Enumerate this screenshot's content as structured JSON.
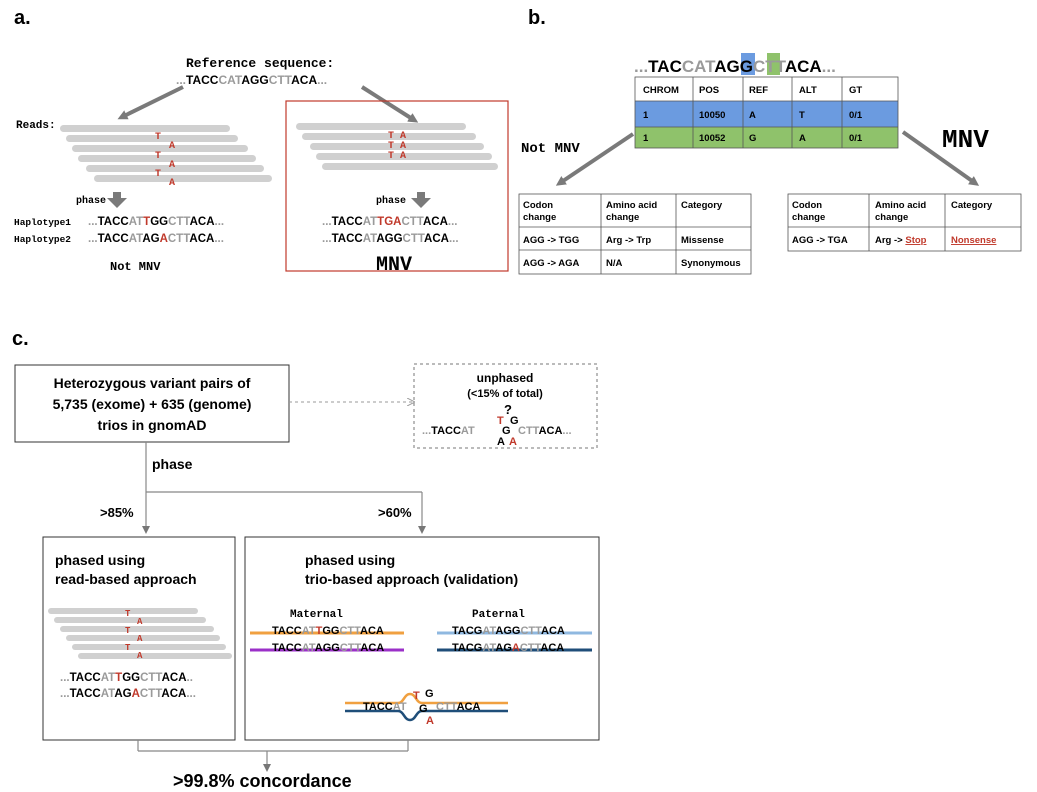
{
  "colors": {
    "red": "#c0392b",
    "gray_text": "#9a9a9a",
    "read_gray": "#d0d0d0",
    "table_blue": "#6b9be0",
    "table_green": "#8fc26b",
    "maternal_top": "#f0a040",
    "maternal_bottom": "#9b30c8",
    "paternal_top": "#8fb8e0",
    "paternal_bottom": "#1f4e79"
  },
  "panel_a": {
    "label": "a.",
    "ref_title": "Reference sequence:",
    "ref_seq": [
      {
        "t": "...",
        "c": "gray_text"
      },
      {
        "t": "TACC",
        "c": "black"
      },
      {
        "t": "CAT",
        "c": "gray_text"
      },
      {
        "t": "AGG",
        "c": "black"
      },
      {
        "t": "CTT",
        "c": "gray_text"
      },
      {
        "t": "ACA",
        "c": "black"
      },
      {
        "t": "...",
        "c": "gray_text"
      }
    ],
    "reads_label": "Reads:",
    "left_read_letters": [
      "T",
      "A",
      "T",
      "A",
      "T",
      "A"
    ],
    "right_read_letters": [
      "T A",
      "T A",
      "T A"
    ],
    "phase_label": "phase",
    "haplotype1_label": "Haplotype1",
    "haplotype2_label": "Haplotype2",
    "hap1_seq": [
      {
        "t": "...",
        "c": "gray_text"
      },
      {
        "t": "TACC",
        "c": "black"
      },
      {
        "t": "AT",
        "c": "gray_text"
      },
      {
        "t": "T",
        "c": "red"
      },
      {
        "t": "GG",
        "c": "black"
      },
      {
        "t": "CTT",
        "c": "gray_text"
      },
      {
        "t": "ACA",
        "c": "black"
      },
      {
        "t": "...",
        "c": "gray_text"
      }
    ],
    "hap2_seq": [
      {
        "t": "...",
        "c": "gray_text"
      },
      {
        "t": "TACC",
        "c": "black"
      },
      {
        "t": "AT",
        "c": "gray_text"
      },
      {
        "t": "AG",
        "c": "black"
      },
      {
        "t": "A",
        "c": "red"
      },
      {
        "t": "CTT",
        "c": "gray_text"
      },
      {
        "t": "ACA",
        "c": "black"
      },
      {
        "t": "...",
        "c": "gray_text"
      }
    ],
    "mnv_seq1": [
      {
        "t": "...",
        "c": "gray_text"
      },
      {
        "t": "TACC",
        "c": "black"
      },
      {
        "t": "AT",
        "c": "gray_text"
      },
      {
        "t": "TGA",
        "c": "red"
      },
      {
        "t": "CTT",
        "c": "gray_text"
      },
      {
        "t": "ACA",
        "c": "black"
      },
      {
        "t": "...",
        "c": "gray_text"
      }
    ],
    "mnv_seq2": [
      {
        "t": "...",
        "c": "gray_text"
      },
      {
        "t": "TACC",
        "c": "black"
      },
      {
        "t": "AT",
        "c": "gray_text"
      },
      {
        "t": "AGG",
        "c": "black"
      },
      {
        "t": "CTT",
        "c": "gray_text"
      },
      {
        "t": "ACA",
        "c": "black"
      },
      {
        "t": "...",
        "c": "gray_text"
      }
    ],
    "not_mnv": "Not MNV",
    "mnv": "MNV"
  },
  "panel_b": {
    "label": "b.",
    "seq": [
      {
        "t": "...",
        "c": "gray_text"
      },
      {
        "t": "TAC",
        "c": "black"
      },
      {
        "t": "CAT",
        "c": "gray_text"
      },
      {
        "t": "AGG",
        "c": "black"
      },
      {
        "t": "CTT",
        "c": "gray_text"
      },
      {
        "t": "ACA",
        "c": "black"
      },
      {
        "t": "...",
        "c": "gray_text"
      }
    ],
    "vcf_headers": [
      "CHROM",
      "POS",
      "REF",
      "ALT",
      "GT"
    ],
    "vcf_rows": [
      [
        "1",
        "10050",
        "A",
        "T",
        "0/1"
      ],
      [
        "1",
        "10052",
        "G",
        "A",
        "0/1"
      ]
    ],
    "not_mnv": "Not MNV",
    "mnv": "MNV",
    "left_table": {
      "headers": [
        [
          "Codon",
          "change"
        ],
        [
          "Amino acid",
          "change"
        ],
        [
          "Category"
        ]
      ],
      "rows": [
        [
          "AGG -> TGG",
          "Arg -> Trp",
          "Missense"
        ],
        [
          "AGG -> AGA",
          "N/A",
          "Synonymous"
        ]
      ]
    },
    "right_table": {
      "headers": [
        [
          "Codon",
          "change"
        ],
        [
          "Amino acid",
          "change"
        ],
        [
          "Category"
        ]
      ],
      "row": [
        "AGG -> TGA",
        "Arg -> ",
        "Stop",
        "Nonsense"
      ]
    }
  },
  "panel_c": {
    "label": "c.",
    "main_box": [
      "Heterozygous variant pairs of",
      "5,735 (exome)   +   635 (genome)",
      "trios in gnomAD"
    ],
    "unphased_title": "unphased",
    "unphased_sub": "(<15% of total)",
    "unphased_seq_left": "...TACCAT",
    "unphased_seq_right": "CTTACA...",
    "unphased_letters": [
      "?",
      "T",
      "G",
      "G",
      "A",
      "A"
    ],
    "phase_label": "phase",
    "pct_left": ">85%",
    "pct_right": ">60%",
    "read_box_title": [
      "phased using",
      "read-based approach"
    ],
    "trio_box_title": [
      "phased using",
      "trio-based approach (validation)"
    ],
    "maternal": "Maternal",
    "paternal": "Paternal",
    "read_letters": [
      "T",
      "A",
      "T",
      "A",
      "T",
      "A"
    ],
    "read_seq1": [
      {
        "t": "...",
        "c": "gray_text"
      },
      {
        "t": "TACC",
        "c": "black"
      },
      {
        "t": "AT",
        "c": "gray_text"
      },
      {
        "t": "T",
        "c": "red"
      },
      {
        "t": "GG",
        "c": "black"
      },
      {
        "t": "CTT",
        "c": "gray_text"
      },
      {
        "t": "ACA",
        "c": "black"
      },
      {
        "t": "..",
        "c": "gray_text"
      }
    ],
    "read_seq2": [
      {
        "t": "...",
        "c": "gray_text"
      },
      {
        "t": "TACC",
        "c": "black"
      },
      {
        "t": "AT",
        "c": "gray_text"
      },
      {
        "t": "AG",
        "c": "black"
      },
      {
        "t": "A",
        "c": "red"
      },
      {
        "t": "CTT",
        "c": "gray_text"
      },
      {
        "t": "ACA",
        "c": "black"
      },
      {
        "t": "...",
        "c": "gray_text"
      }
    ],
    "mat_seq1": [
      {
        "t": "TACC",
        "c": "black"
      },
      {
        "t": "AT",
        "c": "gray_text"
      },
      {
        "t": "T",
        "c": "red"
      },
      {
        "t": "GG",
        "c": "black"
      },
      {
        "t": "CTT",
        "c": "gray_text"
      },
      {
        "t": "ACA",
        "c": "black"
      }
    ],
    "mat_seq2": [
      {
        "t": "TACC",
        "c": "black"
      },
      {
        "t": "AT",
        "c": "gray_text"
      },
      {
        "t": "AGG",
        "c": "black"
      },
      {
        "t": "CTT",
        "c": "gray_text"
      },
      {
        "t": "ACA",
        "c": "black"
      }
    ],
    "pat_seq1": [
      {
        "t": "TACG",
        "c": "black"
      },
      {
        "t": "AT",
        "c": "gray_text"
      },
      {
        "t": "AGG",
        "c": "black"
      },
      {
        "t": "CTT",
        "c": "gray_text"
      },
      {
        "t": "ACA",
        "c": "black"
      }
    ],
    "pat_seq2": [
      {
        "t": "TACG",
        "c": "black"
      },
      {
        "t": "AT",
        "c": "gray_text"
      },
      {
        "t": "AG",
        "c": "black"
      },
      {
        "t": "A",
        "c": "red"
      },
      {
        "t": "CTT",
        "c": "gray_text"
      },
      {
        "t": "ACA",
        "c": "black"
      }
    ],
    "child_left": "TACCAT",
    "child_right": "CTTACA",
    "child_letters": [
      "T",
      "G",
      "G",
      "A"
    ],
    "concordance": ">99.8% concordance"
  }
}
